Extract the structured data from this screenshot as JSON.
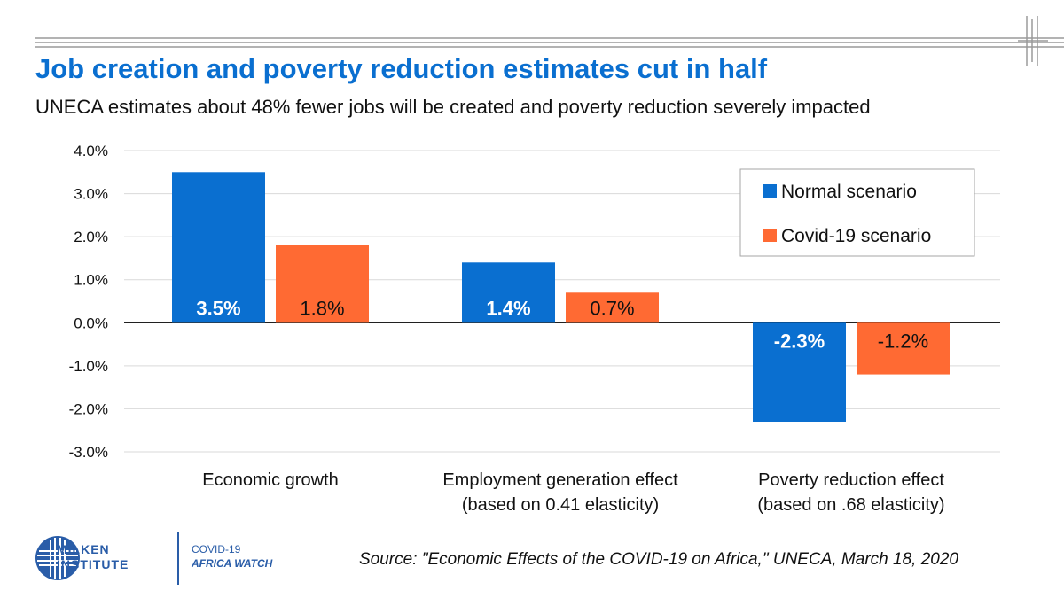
{
  "header": {
    "title": "Job creation and poverty reduction estimates cut in half",
    "subtitle": "UNECA estimates about 48% fewer jobs will be created and poverty reduction severely impacted"
  },
  "chart_data": {
    "type": "bar",
    "title": "Job creation and poverty reduction estimates cut in half",
    "categories": [
      [
        "Economic growth"
      ],
      [
        "Employment generation effect",
        "(based on 0.41 elasticity)"
      ],
      [
        "Poverty reduction effect",
        "(based on .68 elasticity)"
      ]
    ],
    "series": [
      {
        "name": "Normal scenario",
        "color": "#0a6fd0",
        "values": [
          3.5,
          1.4,
          -2.3
        ],
        "labels": [
          "3.5%",
          "1.4%",
          "-2.3%"
        ]
      },
      {
        "name": "Covid-19 scenario",
        "color": "#ff6a33",
        "values": [
          1.8,
          0.7,
          -1.2
        ],
        "labels": [
          "1.8%",
          "0.7%",
          "-1.2%"
        ]
      }
    ],
    "ylim": [
      -3.0,
      4.0
    ],
    "yticks": [
      4.0,
      3.0,
      2.0,
      1.0,
      0.0,
      -1.0,
      -2.0,
      -3.0
    ],
    "ytick_labels": [
      "4.0%",
      "3.0%",
      "2.0%",
      "1.0%",
      "0.0%",
      "-1.0%",
      "-2.0%",
      "-3.0%"
    ],
    "xlabel": "",
    "ylabel": "",
    "grid": true,
    "legend": "top-right"
  },
  "footer": {
    "logo_line1": "MILKEN",
    "logo_line2": "INSTITUTE",
    "program_line1": "COVID-19",
    "program_line2": "AFRICA WATCH",
    "source": "Source: \"Economic Effects of the COVID-19 on Africa,\" UNECA, March 18, 2020"
  }
}
